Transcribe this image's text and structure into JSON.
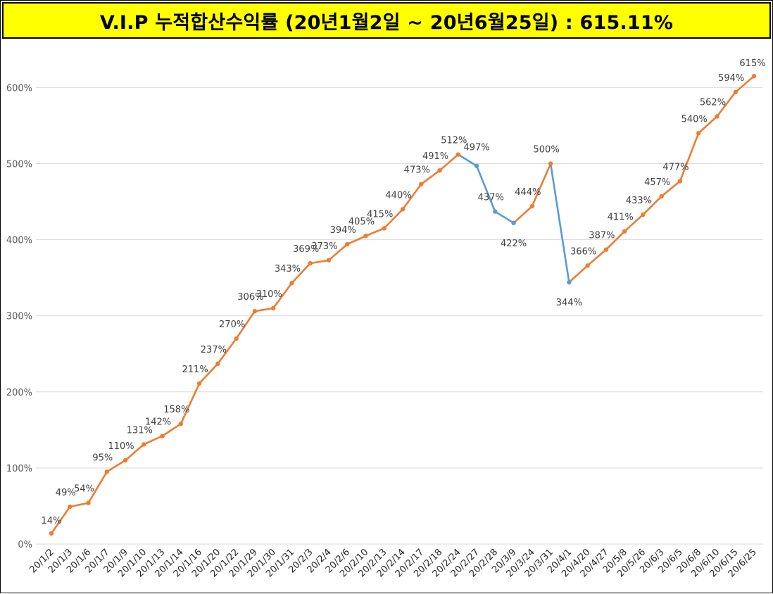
{
  "chart_data": {
    "type": "line",
    "title": "V.I.P 누적합산수익률 (20년1월2일 ~ 20년6월25일) : 615.11%",
    "ylim": [
      0,
      650
    ],
    "yticks": [
      0,
      100,
      200,
      300,
      400,
      500,
      600
    ],
    "ytick_labels": [
      "0%",
      "100%",
      "200%",
      "300%",
      "400%",
      "500%",
      "600%"
    ],
    "grid": true,
    "legend": "none",
    "colors": {
      "rising": "#ED7D31",
      "falling": "#5B9BD5",
      "grid": "#D9D9D9",
      "title_bg": "#FFFF00"
    },
    "categories": [
      "20/1/2",
      "20/1/3",
      "20/1/6",
      "20/1/7",
      "20/1/9",
      "20/1/10",
      "20/1/13",
      "20/1/14",
      "20/1/16",
      "20/1/20",
      "20/1/22",
      "20/1/29",
      "20/1/30",
      "20/1/31",
      "20/2/3",
      "20/2/4",
      "20/2/6",
      "20/2/10",
      "20/2/13",
      "20/2/14",
      "20/2/17",
      "20/2/18",
      "20/2/24",
      "20/2/27",
      "20/2/28",
      "20/3/9",
      "20/3/24",
      "20/3/31",
      "20/4/1",
      "20/4/20",
      "20/4/27",
      "20/5/8",
      "20/5/26",
      "20/6/3",
      "20/6/5",
      "20/6/8",
      "20/6/10",
      "20/6/15",
      "20/6/25"
    ],
    "values": [
      14,
      49,
      54,
      95,
      110,
      131,
      142,
      158,
      211,
      237,
      270,
      306,
      310,
      343,
      369,
      373,
      394,
      405,
      415,
      440,
      473,
      491,
      512,
      497,
      437,
      422,
      444,
      500,
      344,
      366,
      387,
      411,
      433,
      457,
      477,
      540,
      562,
      594,
      615
    ],
    "data_labels": [
      "14%",
      "49%",
      "54%",
      "95%",
      "110%",
      "131%",
      "142%",
      "158%",
      "211%",
      "237%",
      "270%",
      "306%",
      "310%",
      "343%",
      "369%",
      "373%",
      "394%",
      "405%",
      "415%",
      "440%",
      "473%",
      "491%",
      "512%",
      "497%",
      "437%",
      "422%",
      "444%",
      "500%",
      "344%",
      "366%",
      "387%",
      "411%",
      "433%",
      "457%",
      "477%",
      "540%",
      "562%",
      "594%",
      "615%"
    ]
  }
}
